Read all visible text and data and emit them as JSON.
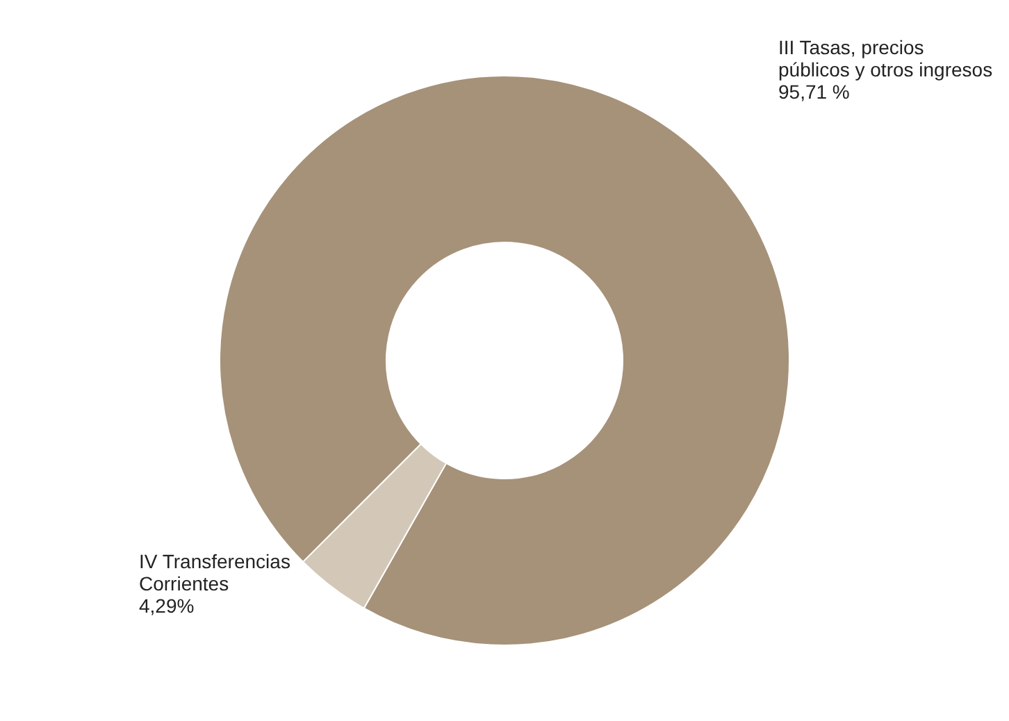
{
  "chart_data": {
    "type": "donut",
    "categories": [
      "III Tasas, precios públicos y otros ingresos",
      "IV Transferencias Corrientes"
    ],
    "values": [
      95.71,
      4.29
    ],
    "colors": [
      "#a69279",
      "#d3c8b8"
    ],
    "value_labels": [
      "95,71 %",
      "4,29%"
    ]
  }
}
